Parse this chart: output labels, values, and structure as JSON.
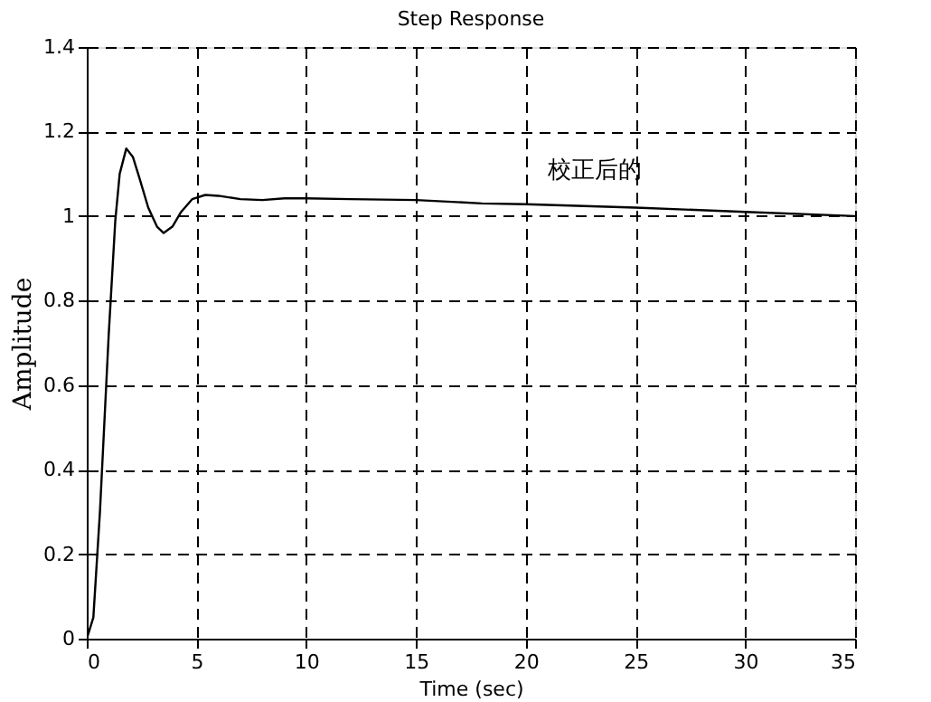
{
  "chart_data": {
    "type": "line",
    "title": "Step Response",
    "xlabel": "Time (sec)",
    "ylabel": "Amplitude",
    "x": [
      0,
      0.3,
      0.6,
      1.0,
      1.3,
      1.5,
      1.8,
      2.1,
      2.4,
      2.8,
      3.2,
      3.5,
      3.9,
      4.3,
      4.8,
      5.4,
      6,
      7,
      8,
      9,
      10,
      12,
      15,
      18,
      20,
      25,
      30,
      35
    ],
    "series": [
      {
        "color": "#000000",
        "values": [
          0,
          0.05,
          0.3,
          0.72,
          0.99,
          1.1,
          1.16,
          1.14,
          1.09,
          1.02,
          0.975,
          0.96,
          0.975,
          1.01,
          1.04,
          1.05,
          1.048,
          1.04,
          1.038,
          1.042,
          1.042,
          1.04,
          1.038,
          1.03,
          1.028,
          1.02,
          1.01,
          1.0
        ]
      }
    ],
    "xlim": [
      0,
      35
    ],
    "xticks": [
      0,
      5,
      10,
      15,
      20,
      25,
      30,
      35
    ],
    "ylim": [
      0,
      1.4
    ],
    "yticks": [
      0,
      0.2,
      0.4,
      0.6,
      0.8,
      1,
      1.2,
      1.4
    ],
    "grid": true,
    "line_style": "solid",
    "annotations": [
      "校正后的"
    ]
  }
}
